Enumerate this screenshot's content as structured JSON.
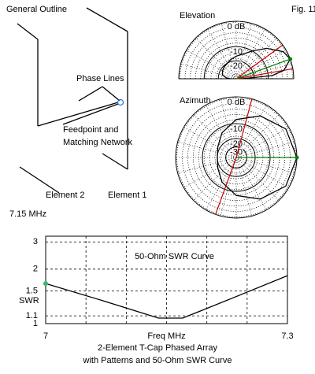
{
  "figure": {
    "label": "Fig. 11",
    "outline_title": "General Outline",
    "outline_labels": [
      "Phase Lines",
      "Feedpoint and",
      "Matching Network",
      "Element 2",
      "Element 1",
      "7.15 MHz"
    ],
    "caption": [
      "2-Element T-Cap Phased Array",
      "with Patterns and 50-Ohm SWR Curve"
    ]
  },
  "chart_data": [
    {
      "type": "polar",
      "title": "Elevation",
      "half": true,
      "rticks": [
        {
          "value": 0,
          "label": "0 dB"
        },
        -10,
        -20
      ],
      "angles": [
        0,
        5,
        10,
        20,
        30,
        45,
        60,
        75,
        90,
        105,
        120,
        135,
        150,
        165,
        175,
        180
      ],
      "values": [
        -40,
        -8,
        -3,
        0,
        -1,
        -5,
        -10,
        -14,
        -16,
        -18,
        -20,
        -21,
        -22,
        -24,
        -30,
        -40
      ],
      "color": "#000000",
      "peak_line": {
        "angle": 20,
        "color": "#008000"
      },
      "half_power_lines": {
        "angles": [
          10,
          36
        ],
        "color": "#cc0000"
      }
    },
    {
      "type": "polar",
      "title": "Azimuth",
      "half": false,
      "rticks": [
        {
          "value": 0,
          "label": "0 dB"
        },
        -10,
        -20,
        -30
      ],
      "angles": [
        0,
        30,
        60,
        90,
        120,
        150,
        180,
        210,
        240,
        270,
        300,
        330
      ],
      "values": [
        0,
        -1,
        -4,
        -8,
        -13,
        -18,
        -20,
        -18,
        -13,
        -8,
        -4,
        -1
      ],
      "color": "#000000",
      "peak_line": {
        "angle": 0,
        "color": "#008000"
      },
      "half_power_lines": {
        "angles": [
          75,
          250
        ],
        "color": "#cc0000"
      }
    },
    {
      "type": "line",
      "title": "50-Ohm SWR Curve",
      "xlabel": "Freq MHz",
      "ylabel": "SWR",
      "x": [
        7,
        7.07,
        7.14,
        7.17,
        7.23,
        7.3
      ],
      "values": [
        1.65,
        1.33,
        1.07,
        1.07,
        1.36,
        1.83
      ],
      "color": "#000000",
      "marker_color": "#3cb371",
      "xlim": [
        7,
        7.3
      ],
      "xticks": [
        7,
        7.3
      ],
      "ylim": [
        1,
        3.3
      ],
      "yticks": [
        1,
        1.1,
        1.5,
        2,
        3
      ],
      "yscale": "swr",
      "grid": true
    }
  ]
}
